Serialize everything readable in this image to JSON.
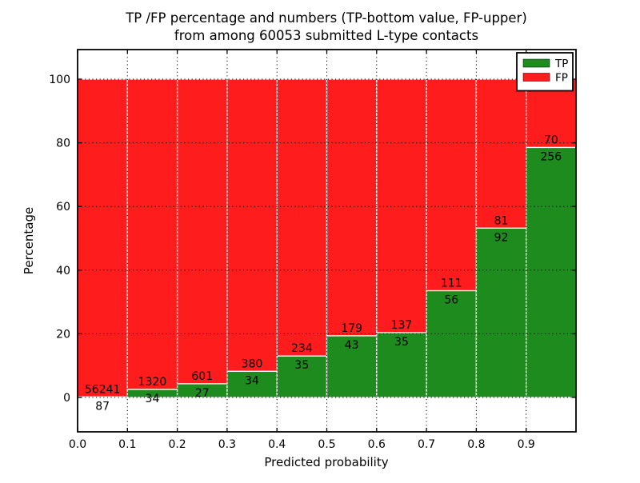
{
  "title": {
    "line1": "TP /FP percentage and numbers (TP-bottom value, FP-upper)",
    "line2": "from among 60053 submitted L-type contacts"
  },
  "chart_data": {
    "type": "bar",
    "stacked": true,
    "normalized_to": 100,
    "title": "TP /FP percentage and numbers (TP-bottom value, FP-upper) from among 60053 submitted L-type contacts",
    "xlabel": "Predicted probability",
    "ylabel": "Percentage",
    "total_submitted": 60053,
    "categories": [
      "0.0-0.1",
      "0.1-0.2",
      "0.2-0.3",
      "0.3-0.4",
      "0.4-0.5",
      "0.5-0.6",
      "0.6-0.7",
      "0.7-0.8",
      "0.8-0.9",
      "0.9-1.0"
    ],
    "series": [
      {
        "name": "TP",
        "color": "#1e8b1e",
        "counts": [
          87,
          34,
          27,
          34,
          35,
          43,
          35,
          56,
          92,
          256
        ]
      },
      {
        "name": "FP",
        "color": "#ff1c1c",
        "counts": [
          56241,
          1320,
          601,
          380,
          234,
          179,
          137,
          111,
          81,
          70
        ]
      }
    ],
    "tp_percent_of_bin": [
      0.15,
      2.51,
      4.3,
      8.21,
      13.01,
      19.37,
      20.35,
      33.53,
      53.18,
      78.53
    ],
    "x_tick_labels": [
      "0.0",
      "0.1",
      "0.2",
      "0.3",
      "0.4",
      "0.5",
      "0.6",
      "0.7",
      "0.8",
      "0.9"
    ],
    "y_tick_values": [
      0,
      20,
      40,
      60,
      80,
      100
    ],
    "xlim": [
      0.0,
      1.0
    ],
    "ylim": [
      -10.8,
      109.3
    ],
    "grid": true,
    "grid_style": "dotted",
    "legend": {
      "position": "upper right",
      "entries": [
        {
          "label": "TP",
          "color": "#1e8b1e"
        },
        {
          "label": "FP",
          "color": "#ff1c1c"
        }
      ]
    }
  },
  "colors": {
    "tp_green": "#1e8b1e",
    "fp_red": "#ff1c1c",
    "axis_black": "#000000",
    "background": "#ffffff",
    "bar_edge": "#ffffff"
  }
}
